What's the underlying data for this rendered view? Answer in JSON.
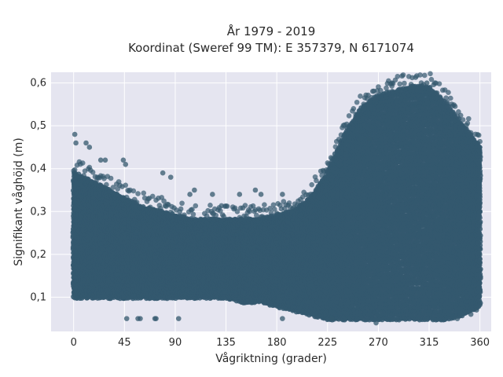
{
  "chart_data": {
    "type": "scatter",
    "title": "År 1979 - 2019",
    "subtitle": "Koordinat (Sweref 99 TM): E 357379, N 6171074",
    "xlabel": "Vågriktning (grader)",
    "ylabel": "Signifikant våghöjd (m)",
    "xlim": [
      -20,
      370
    ],
    "ylim": [
      0.02,
      0.625
    ],
    "x_ticks": [
      0,
      45,
      90,
      135,
      180,
      225,
      270,
      315,
      360
    ],
    "x_tick_labels": [
      "0",
      "45",
      "90",
      "135",
      "180",
      "225",
      "270",
      "315",
      "360"
    ],
    "y_ticks": [
      0.1,
      0.2,
      0.3,
      0.4,
      0.5,
      0.6
    ],
    "y_tick_labels": [
      "0,1",
      "0,2",
      "0,3",
      "0,4",
      "0,5",
      "0,6"
    ],
    "grid": true,
    "marker_color": "#34586e",
    "background_color": "#e5e5f0",
    "envelope": {
      "direction": [
        0,
        15,
        30,
        45,
        60,
        75,
        90,
        105,
        120,
        135,
        150,
        165,
        180,
        195,
        210,
        225,
        240,
        255,
        270,
        285,
        300,
        315,
        330,
        345,
        360
      ],
      "upper": [
        0.39,
        0.37,
        0.35,
        0.33,
        0.31,
        0.3,
        0.29,
        0.28,
        0.28,
        0.28,
        0.28,
        0.28,
        0.29,
        0.3,
        0.33,
        0.39,
        0.48,
        0.54,
        0.57,
        0.58,
        0.59,
        0.59,
        0.55,
        0.5,
        0.45
      ],
      "lower": [
        0.1,
        0.1,
        0.1,
        0.1,
        0.1,
        0.1,
        0.1,
        0.1,
        0.1,
        0.1,
        0.09,
        0.09,
        0.08,
        0.07,
        0.06,
        0.05,
        0.05,
        0.05,
        0.05,
        0.05,
        0.05,
        0.05,
        0.05,
        0.06,
        0.08
      ]
    },
    "outliers": [
      {
        "x": 1,
        "y": 0.48
      },
      {
        "x": 2,
        "y": 0.46
      },
      {
        "x": 11,
        "y": 0.46
      },
      {
        "x": 14,
        "y": 0.45
      },
      {
        "x": 24,
        "y": 0.42
      },
      {
        "x": 28,
        "y": 0.42
      },
      {
        "x": 44,
        "y": 0.42
      },
      {
        "x": 46,
        "y": 0.41
      },
      {
        "x": 47,
        "y": 0.05
      },
      {
        "x": 57,
        "y": 0.05
      },
      {
        "x": 59,
        "y": 0.05
      },
      {
        "x": 79,
        "y": 0.39
      },
      {
        "x": 86,
        "y": 0.38
      },
      {
        "x": 72,
        "y": 0.05
      },
      {
        "x": 73,
        "y": 0.05
      },
      {
        "x": 93,
        "y": 0.05
      },
      {
        "x": 103,
        "y": 0.34
      },
      {
        "x": 107,
        "y": 0.35
      },
      {
        "x": 123,
        "y": 0.34
      },
      {
        "x": 147,
        "y": 0.34
      },
      {
        "x": 161,
        "y": 0.35
      },
      {
        "x": 166,
        "y": 0.34
      },
      {
        "x": 185,
        "y": 0.34
      },
      {
        "x": 185,
        "y": 0.05
      },
      {
        "x": 229,
        "y": 0.05
      },
      {
        "x": 262,
        "y": 0.47
      },
      {
        "x": 268,
        "y": 0.04
      },
      {
        "x": 282,
        "y": 0.6
      },
      {
        "x": 313,
        "y": 0.6
      },
      {
        "x": 340,
        "y": 0.05
      },
      {
        "x": 352,
        "y": 0.06
      },
      {
        "x": 357,
        "y": 0.07
      }
    ]
  }
}
